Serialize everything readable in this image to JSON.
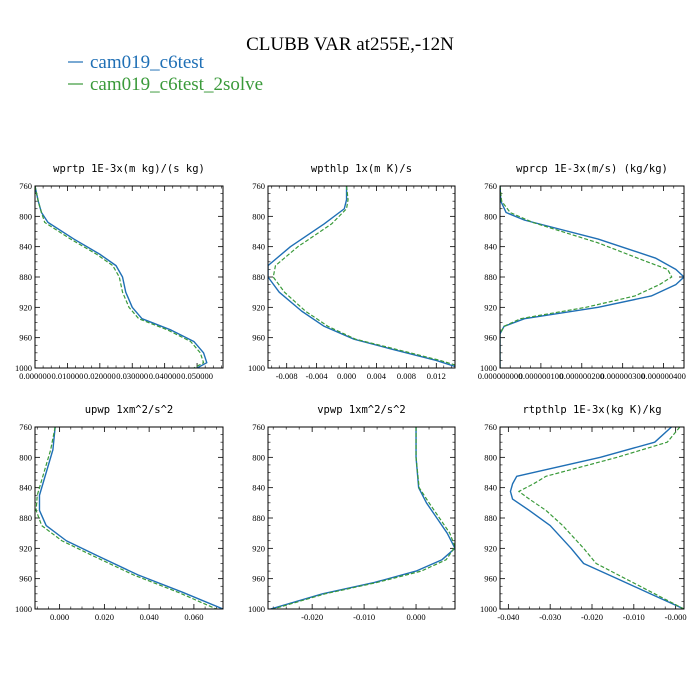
{
  "figure": {
    "title": "CLUBB VAR at255E,-12N",
    "legend": [
      {
        "name": "cam019_c6test",
        "color": "#1f6fb5",
        "dash": "solid"
      },
      {
        "name": "cam019_c6test_2solve",
        "color": "#3a9a3a",
        "dash": "dashed"
      }
    ]
  },
  "chart_data": [
    {
      "type": "line",
      "title": "wprtp  1E-3x(m kg)/(s kg)",
      "ylim": [
        760,
        1000
      ],
      "yinvert": true,
      "xlim": [
        0,
        0.058
      ],
      "yticks": [
        760,
        800,
        840,
        880,
        920,
        960,
        1000
      ],
      "xticks": [
        0,
        0.01,
        0.02,
        0.03,
        0.04,
        0.05
      ],
      "xtick_labels": [
        "0.000000",
        "0.010000",
        "0.020000",
        "0.030000",
        "0.040000",
        "0.050000"
      ],
      "series": [
        {
          "name": "cam019_c6test",
          "points": [
            [
              0,
              760
            ],
            [
              0.001,
              780
            ],
            [
              0.002,
              795
            ],
            [
              0.004,
              808
            ],
            [
              0.012,
              830
            ],
            [
              0.02,
              850
            ],
            [
              0.025,
              865
            ],
            [
              0.027,
              880
            ],
            [
              0.028,
              900
            ],
            [
              0.03,
              920
            ],
            [
              0.033,
              935
            ],
            [
              0.042,
              950
            ],
            [
              0.049,
              965
            ],
            [
              0.052,
              980
            ],
            [
              0.053,
              993
            ],
            [
              0.05,
              1000
            ]
          ]
        },
        {
          "name": "cam019_c6test_2solve",
          "points": [
            [
              0,
              760
            ],
            [
              0.001,
              780
            ],
            [
              0.002,
              795
            ],
            [
              0.003,
              808
            ],
            [
              0.011,
              830
            ],
            [
              0.019,
              850
            ],
            [
              0.024,
              865
            ],
            [
              0.026,
              880
            ],
            [
              0.027,
              900
            ],
            [
              0.029,
              920
            ],
            [
              0.032,
              935
            ],
            [
              0.041,
              950
            ],
            [
              0.048,
              965
            ],
            [
              0.051,
              980
            ],
            [
              0.052,
              993
            ],
            [
              0.049,
              1000
            ]
          ]
        }
      ]
    },
    {
      "type": "line",
      "title": "wpthlp  1x(m K)/s",
      "ylim": [
        760,
        1000
      ],
      "yinvert": true,
      "xlim": [
        -0.0105,
        0.0145
      ],
      "yticks": [
        760,
        800,
        840,
        880,
        920,
        960,
        1000
      ],
      "xticks": [
        -0.008,
        -0.004,
        0,
        0.004,
        0.008,
        0.012
      ],
      "xtick_labels": [
        "-0.008",
        "-0.004",
        "0.000",
        "0.004",
        "0.008",
        "0.012"
      ],
      "series": [
        {
          "name": "cam019_c6test",
          "points": [
            [
              0,
              760
            ],
            [
              0,
              778
            ],
            [
              -0.0003,
              790
            ],
            [
              -0.003,
              810
            ],
            [
              -0.0075,
              840
            ],
            [
              -0.0105,
              865
            ],
            [
              -0.0105,
              880
            ],
            [
              -0.009,
              900
            ],
            [
              -0.006,
              925
            ],
            [
              -0.003,
              945
            ],
            [
              0.001,
              962
            ],
            [
              0.006,
              975
            ],
            [
              0.012,
              990
            ],
            [
              0.0145,
              998
            ]
          ]
        },
        {
          "name": "cam019_c6test_2solve",
          "points": [
            [
              0,
              760
            ],
            [
              0.0002,
              778
            ],
            [
              0,
              790
            ],
            [
              -0.002,
              810
            ],
            [
              -0.0065,
              840
            ],
            [
              -0.0095,
              865
            ],
            [
              -0.0098,
              880
            ],
            [
              -0.0083,
              900
            ],
            [
              -0.0055,
              925
            ],
            [
              -0.0025,
              945
            ],
            [
              0.0012,
              962
            ],
            [
              0.0065,
              975
            ],
            [
              0.0125,
              990
            ],
            [
              0.0145,
              996
            ]
          ]
        }
      ]
    },
    {
      "type": "line",
      "title": "wprcp  1E-3x(m/s) (kg/kg)",
      "ylim": [
        760,
        1000
      ],
      "yinvert": true,
      "xlim": [
        0,
        4.5e-07
      ],
      "yticks": [
        760,
        800,
        840,
        880,
        920,
        960,
        1000
      ],
      "xticks": [
        0,
        1e-07,
        2e-07,
        3e-07,
        4e-07
      ],
      "xtick_labels": [
        "0.000000000",
        "0.000000100",
        "0.000000200",
        "0.000000300",
        "0.000000400"
      ],
      "series": [
        {
          "name": "cam019_c6test",
          "points": [
            [
              0,
              760
            ],
            [
              2e-09,
              780
            ],
            [
              1.5e-08,
              795
            ],
            [
              6e-08,
              805
            ],
            [
              2.4e-07,
              830
            ],
            [
              3.8e-07,
              855
            ],
            [
              4.3e-07,
              870
            ],
            [
              4.5e-07,
              880
            ],
            [
              4.3e-07,
              890
            ],
            [
              3.7e-07,
              905
            ],
            [
              2.4e-07,
              920
            ],
            [
              6e-08,
              935
            ],
            [
              1e-08,
              945
            ],
            [
              0,
              955
            ],
            [
              0,
              1000
            ]
          ]
        },
        {
          "name": "cam019_c6test_2solve",
          "points": [
            [
              0,
              760
            ],
            [
              4e-09,
              780
            ],
            [
              2.5e-08,
              795
            ],
            [
              8e-08,
              808
            ],
            [
              2.4e-07,
              835
            ],
            [
              3.6e-07,
              860
            ],
            [
              4.1e-07,
              870
            ],
            [
              4.2e-07,
              880
            ],
            [
              3.9e-07,
              890
            ],
            [
              3.3e-07,
              905
            ],
            [
              2.1e-07,
              920
            ],
            [
              5e-08,
              935
            ],
            [
              1e-08,
              945
            ],
            [
              0,
              955
            ],
            [
              0,
              1000
            ]
          ]
        }
      ]
    },
    {
      "type": "line",
      "title": "upwp  1xm^2/s^2",
      "ylim": [
        760,
        1000
      ],
      "yinvert": true,
      "xlim": [
        -0.011,
        0.073
      ],
      "yticks": [
        760,
        800,
        840,
        880,
        920,
        960,
        1000
      ],
      "xticks": [
        0,
        0.02,
        0.04,
        0.06
      ],
      "xtick_labels": [
        "0.000",
        "0.020",
        "0.040",
        "0.060"
      ],
      "series": [
        {
          "name": "cam019_c6test",
          "points": [
            [
              -0.002,
              760
            ],
            [
              -0.003,
              790
            ],
            [
              -0.006,
              820
            ],
            [
              -0.009,
              850
            ],
            [
              -0.009,
              870
            ],
            [
              -0.006,
              890
            ],
            [
              0.003,
              910
            ],
            [
              0.017,
              930
            ],
            [
              0.035,
              955
            ],
            [
              0.055,
              978
            ],
            [
              0.073,
              1000
            ]
          ]
        },
        {
          "name": "cam019_c6test_2solve",
          "points": [
            [
              -0.002,
              760
            ],
            [
              -0.004,
              790
            ],
            [
              -0.007,
              820
            ],
            [
              -0.01,
              850
            ],
            [
              -0.0105,
              870
            ],
            [
              -0.008,
              890
            ],
            [
              0.001,
              910
            ],
            [
              0.015,
              930
            ],
            [
              0.033,
              955
            ],
            [
              0.053,
              978
            ],
            [
              0.07,
              1000
            ]
          ]
        }
      ]
    },
    {
      "type": "line",
      "title": "vpwp  1xm^2/s^2",
      "ylim": [
        760,
        1000
      ],
      "yinvert": true,
      "xlim": [
        -0.0285,
        0.0075
      ],
      "yticks": [
        760,
        800,
        840,
        880,
        920,
        960,
        1000
      ],
      "xticks": [
        -0.02,
        -0.01,
        0
      ],
      "xtick_labels": [
        "-0.020",
        "-0.010",
        "0.000"
      ],
      "series": [
        {
          "name": "cam019_c6test",
          "points": [
            [
              0,
              760
            ],
            [
              0,
              800
            ],
            [
              0.0005,
              840
            ],
            [
              0.002,
              860
            ],
            [
              0.004,
              880
            ],
            [
              0.006,
              900
            ],
            [
              0.0075,
              920
            ],
            [
              0.005,
              935
            ],
            [
              0,
              950
            ],
            [
              -0.008,
              965
            ],
            [
              -0.018,
              980
            ],
            [
              -0.028,
              1000
            ]
          ]
        },
        {
          "name": "cam019_c6test_2solve",
          "points": [
            [
              0,
              760
            ],
            [
              0,
              800
            ],
            [
              0.0006,
              840
            ],
            [
              0.0025,
              860
            ],
            [
              0.0045,
              880
            ],
            [
              0.0065,
              900
            ],
            [
              0.0075,
              918
            ],
            [
              0.0058,
              935
            ],
            [
              0.001,
              950
            ],
            [
              -0.0075,
              965
            ],
            [
              -0.0175,
              980
            ],
            [
              -0.0275,
              1000
            ]
          ]
        }
      ]
    },
    {
      "type": "line",
      "title": "rtpthlp  1E-3x(kg K)/kg",
      "ylim": [
        760,
        1000
      ],
      "yinvert": true,
      "xlim": [
        -0.042,
        0.002
      ],
      "yticks": [
        760,
        800,
        840,
        880,
        920,
        960,
        1000
      ],
      "xticks": [
        -0.04,
        -0.03,
        -0.02,
        -0.01,
        0
      ],
      "xtick_labels": [
        "-0.040",
        "-0.030",
        "-0.020",
        "-0.010",
        "-0.000"
      ],
      "series": [
        {
          "name": "cam019_c6test",
          "points": [
            [
              -0.001,
              760
            ],
            [
              -0.005,
              780
            ],
            [
              -0.018,
              800
            ],
            [
              -0.038,
              825
            ],
            [
              -0.039,
              835
            ],
            [
              -0.0395,
              845
            ],
            [
              -0.039,
              855
            ],
            [
              -0.035,
              870
            ],
            [
              -0.03,
              890
            ],
            [
              -0.025,
              920
            ],
            [
              -0.022,
              940
            ],
            [
              -0.014,
              960
            ],
            [
              -0.006,
              980
            ],
            [
              0.002,
              1000
            ]
          ]
        },
        {
          "name": "cam019_c6test_2solve",
          "points": [
            [
              0.001,
              760
            ],
            [
              -0.002,
              780
            ],
            [
              -0.014,
              800
            ],
            [
              -0.031,
              825
            ],
            [
              -0.034,
              835
            ],
            [
              -0.0375,
              845
            ],
            [
              -0.035,
              855
            ],
            [
              -0.031,
              870
            ],
            [
              -0.027,
              890
            ],
            [
              -0.022,
              920
            ],
            [
              -0.019,
              940
            ],
            [
              -0.012,
              960
            ],
            [
              -0.005,
              980
            ],
            [
              0.002,
              1000
            ]
          ]
        }
      ]
    }
  ]
}
